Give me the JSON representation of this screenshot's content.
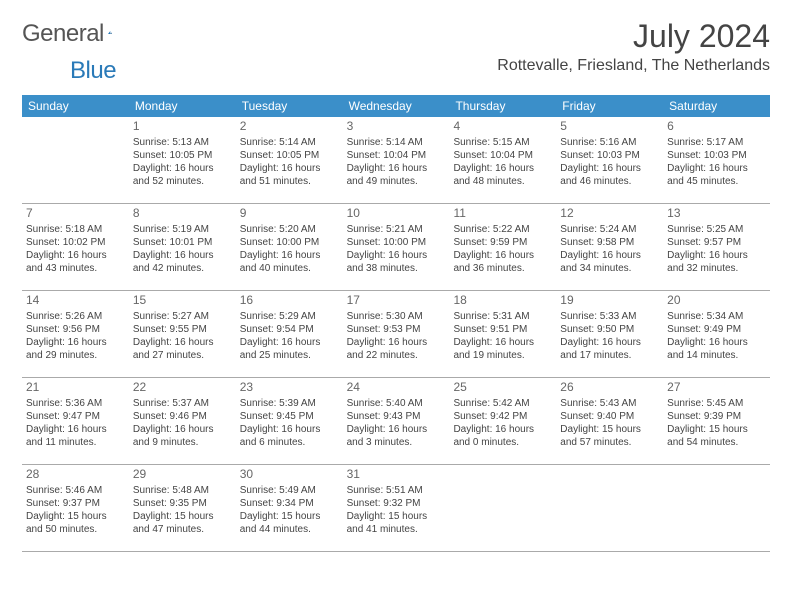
{
  "brand": {
    "text1": "General",
    "text2": "Blue"
  },
  "title": "July 2024",
  "location": "Rottevalle, Friesland, The Netherlands",
  "colors": {
    "header_bg": "#3b8fc9",
    "header_fg": "#ffffff",
    "border": "#aaaaaa",
    "text": "#444444"
  },
  "day_headers": [
    "Sunday",
    "Monday",
    "Tuesday",
    "Wednesday",
    "Thursday",
    "Friday",
    "Saturday"
  ],
  "weeks": [
    [
      null,
      {
        "n": "1",
        "sr": "Sunrise: 5:13 AM",
        "ss": "Sunset: 10:05 PM",
        "dl": "Daylight: 16 hours and 52 minutes."
      },
      {
        "n": "2",
        "sr": "Sunrise: 5:14 AM",
        "ss": "Sunset: 10:05 PM",
        "dl": "Daylight: 16 hours and 51 minutes."
      },
      {
        "n": "3",
        "sr": "Sunrise: 5:14 AM",
        "ss": "Sunset: 10:04 PM",
        "dl": "Daylight: 16 hours and 49 minutes."
      },
      {
        "n": "4",
        "sr": "Sunrise: 5:15 AM",
        "ss": "Sunset: 10:04 PM",
        "dl": "Daylight: 16 hours and 48 minutes."
      },
      {
        "n": "5",
        "sr": "Sunrise: 5:16 AM",
        "ss": "Sunset: 10:03 PM",
        "dl": "Daylight: 16 hours and 46 minutes."
      },
      {
        "n": "6",
        "sr": "Sunrise: 5:17 AM",
        "ss": "Sunset: 10:03 PM",
        "dl": "Daylight: 16 hours and 45 minutes."
      }
    ],
    [
      {
        "n": "7",
        "sr": "Sunrise: 5:18 AM",
        "ss": "Sunset: 10:02 PM",
        "dl": "Daylight: 16 hours and 43 minutes."
      },
      {
        "n": "8",
        "sr": "Sunrise: 5:19 AM",
        "ss": "Sunset: 10:01 PM",
        "dl": "Daylight: 16 hours and 42 minutes."
      },
      {
        "n": "9",
        "sr": "Sunrise: 5:20 AM",
        "ss": "Sunset: 10:00 PM",
        "dl": "Daylight: 16 hours and 40 minutes."
      },
      {
        "n": "10",
        "sr": "Sunrise: 5:21 AM",
        "ss": "Sunset: 10:00 PM",
        "dl": "Daylight: 16 hours and 38 minutes."
      },
      {
        "n": "11",
        "sr": "Sunrise: 5:22 AM",
        "ss": "Sunset: 9:59 PM",
        "dl": "Daylight: 16 hours and 36 minutes."
      },
      {
        "n": "12",
        "sr": "Sunrise: 5:24 AM",
        "ss": "Sunset: 9:58 PM",
        "dl": "Daylight: 16 hours and 34 minutes."
      },
      {
        "n": "13",
        "sr": "Sunrise: 5:25 AM",
        "ss": "Sunset: 9:57 PM",
        "dl": "Daylight: 16 hours and 32 minutes."
      }
    ],
    [
      {
        "n": "14",
        "sr": "Sunrise: 5:26 AM",
        "ss": "Sunset: 9:56 PM",
        "dl": "Daylight: 16 hours and 29 minutes."
      },
      {
        "n": "15",
        "sr": "Sunrise: 5:27 AM",
        "ss": "Sunset: 9:55 PM",
        "dl": "Daylight: 16 hours and 27 minutes."
      },
      {
        "n": "16",
        "sr": "Sunrise: 5:29 AM",
        "ss": "Sunset: 9:54 PM",
        "dl": "Daylight: 16 hours and 25 minutes."
      },
      {
        "n": "17",
        "sr": "Sunrise: 5:30 AM",
        "ss": "Sunset: 9:53 PM",
        "dl": "Daylight: 16 hours and 22 minutes."
      },
      {
        "n": "18",
        "sr": "Sunrise: 5:31 AM",
        "ss": "Sunset: 9:51 PM",
        "dl": "Daylight: 16 hours and 19 minutes."
      },
      {
        "n": "19",
        "sr": "Sunrise: 5:33 AM",
        "ss": "Sunset: 9:50 PM",
        "dl": "Daylight: 16 hours and 17 minutes."
      },
      {
        "n": "20",
        "sr": "Sunrise: 5:34 AM",
        "ss": "Sunset: 9:49 PM",
        "dl": "Daylight: 16 hours and 14 minutes."
      }
    ],
    [
      {
        "n": "21",
        "sr": "Sunrise: 5:36 AM",
        "ss": "Sunset: 9:47 PM",
        "dl": "Daylight: 16 hours and 11 minutes."
      },
      {
        "n": "22",
        "sr": "Sunrise: 5:37 AM",
        "ss": "Sunset: 9:46 PM",
        "dl": "Daylight: 16 hours and 9 minutes."
      },
      {
        "n": "23",
        "sr": "Sunrise: 5:39 AM",
        "ss": "Sunset: 9:45 PM",
        "dl": "Daylight: 16 hours and 6 minutes."
      },
      {
        "n": "24",
        "sr": "Sunrise: 5:40 AM",
        "ss": "Sunset: 9:43 PM",
        "dl": "Daylight: 16 hours and 3 minutes."
      },
      {
        "n": "25",
        "sr": "Sunrise: 5:42 AM",
        "ss": "Sunset: 9:42 PM",
        "dl": "Daylight: 16 hours and 0 minutes."
      },
      {
        "n": "26",
        "sr": "Sunrise: 5:43 AM",
        "ss": "Sunset: 9:40 PM",
        "dl": "Daylight: 15 hours and 57 minutes."
      },
      {
        "n": "27",
        "sr": "Sunrise: 5:45 AM",
        "ss": "Sunset: 9:39 PM",
        "dl": "Daylight: 15 hours and 54 minutes."
      }
    ],
    [
      {
        "n": "28",
        "sr": "Sunrise: 5:46 AM",
        "ss": "Sunset: 9:37 PM",
        "dl": "Daylight: 15 hours and 50 minutes."
      },
      {
        "n": "29",
        "sr": "Sunrise: 5:48 AM",
        "ss": "Sunset: 9:35 PM",
        "dl": "Daylight: 15 hours and 47 minutes."
      },
      {
        "n": "30",
        "sr": "Sunrise: 5:49 AM",
        "ss": "Sunset: 9:34 PM",
        "dl": "Daylight: 15 hours and 44 minutes."
      },
      {
        "n": "31",
        "sr": "Sunrise: 5:51 AM",
        "ss": "Sunset: 9:32 PM",
        "dl": "Daylight: 15 hours and 41 minutes."
      },
      null,
      null,
      null
    ]
  ]
}
